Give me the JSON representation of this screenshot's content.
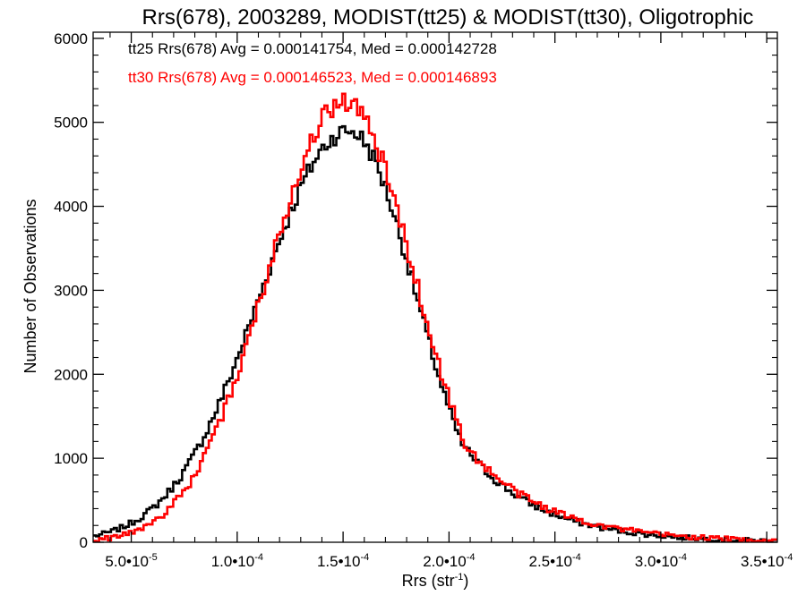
{
  "chart_data": {
    "type": "histogram-step",
    "title": "Rrs(678), 2003289, MODIST(tt25) & MODIST(tt30), Oligotrophic",
    "xlabel_main": "Rrs (str",
    "xlabel_sup": "-1",
    "xlabel_end": ")",
    "ylabel": "Number of Observations",
    "xlim": [
      3.2e-05,
      0.000355
    ],
    "ylim": [
      0,
      6000
    ],
    "xticks": [
      {
        "value": 5e-05,
        "mant": "5.0•10",
        "exp": "-5"
      },
      {
        "value": 0.0001,
        "mant": "1.0•10",
        "exp": "-4"
      },
      {
        "value": 0.00015,
        "mant": "1.5•10",
        "exp": "-4"
      },
      {
        "value": 0.0002,
        "mant": "2.0•10",
        "exp": "-4"
      },
      {
        "value": 0.00025,
        "mant": "2.5•10",
        "exp": "-4"
      },
      {
        "value": 0.0003,
        "mant": "3.0•10",
        "exp": "-4"
      },
      {
        "value": 0.00035,
        "mant": "3.5•10",
        "exp": "-4"
      }
    ],
    "yticks": [
      0,
      1000,
      2000,
      3000,
      4000,
      5000,
      6000
    ],
    "legend": [
      "tt25 Rrs(678) Avg = 0.000141754, Med = 0.000142728",
      "tt30 Rrs(678) Avg = 0.000146523, Med = 0.000146893"
    ],
    "series": [
      {
        "color": "#000000",
        "peak_x": 0.000152,
        "peak_y": 4900,
        "sigma_left": 4.15e-05,
        "sigma_right": 3.15e-05,
        "tail_x": 0.000205,
        "tail_scale": 3.45e-05,
        "noise": 110
      },
      {
        "color": "#ff0000",
        "peak_x": 0.00015,
        "peak_y": 5250,
        "sigma_left": 3.65e-05,
        "sigma_right": 3.3e-05,
        "tail_x": 0.000208,
        "tail_scale": 3.7e-05,
        "noise": 120
      }
    ],
    "grid": false,
    "legend_placement": "top-left"
  },
  "colors": {
    "series1": "#000000",
    "series2": "#ff0000"
  }
}
